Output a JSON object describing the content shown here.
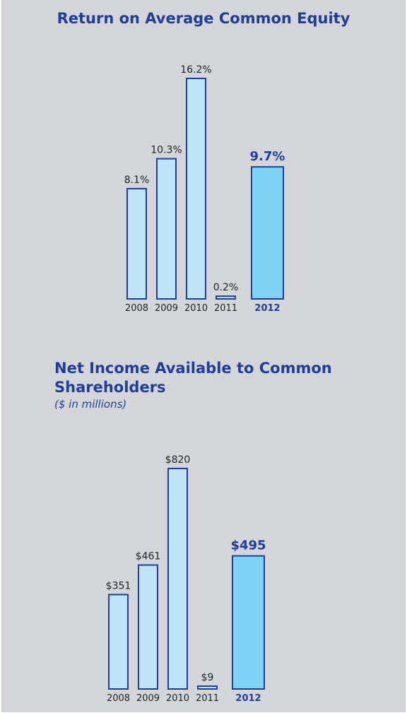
{
  "chart_data": [
    {
      "type": "bar",
      "title": "Return on Average Common Equity",
      "categories": [
        "2008",
        "2009",
        "2010",
        "2011",
        "2012"
      ],
      "values": [
        8.1,
        10.3,
        16.2,
        0.2,
        9.7
      ],
      "value_labels": [
        "8.1%",
        "10.3%",
        "16.2%",
        "0.2%",
        "9.7%"
      ],
      "highlight_index": 4,
      "xlabel": "",
      "ylabel": "",
      "ylim": [
        0,
        16.2
      ],
      "grid": false,
      "colors": {
        "bar": "#bde4f8",
        "highlight": "#7fd3f5",
        "stroke": "#1f3e95",
        "text": "#1f3e95"
      }
    },
    {
      "type": "bar",
      "title": "Net Income Available to Common Shareholders",
      "subtitle": "($ in millions)",
      "categories": [
        "2008",
        "2009",
        "2010",
        "2011",
        "2012"
      ],
      "values": [
        351,
        461,
        820,
        9,
        495
      ],
      "value_labels": [
        "$351",
        "$461",
        "$820",
        "$9",
        "$495"
      ],
      "highlight_index": 4,
      "xlabel": "",
      "ylabel": "",
      "ylim": [
        0,
        820
      ],
      "grid": false,
      "colors": {
        "bar": "#bde4f8",
        "highlight": "#7fd3f5",
        "stroke": "#1f3e95",
        "text": "#1f3e95"
      }
    }
  ]
}
